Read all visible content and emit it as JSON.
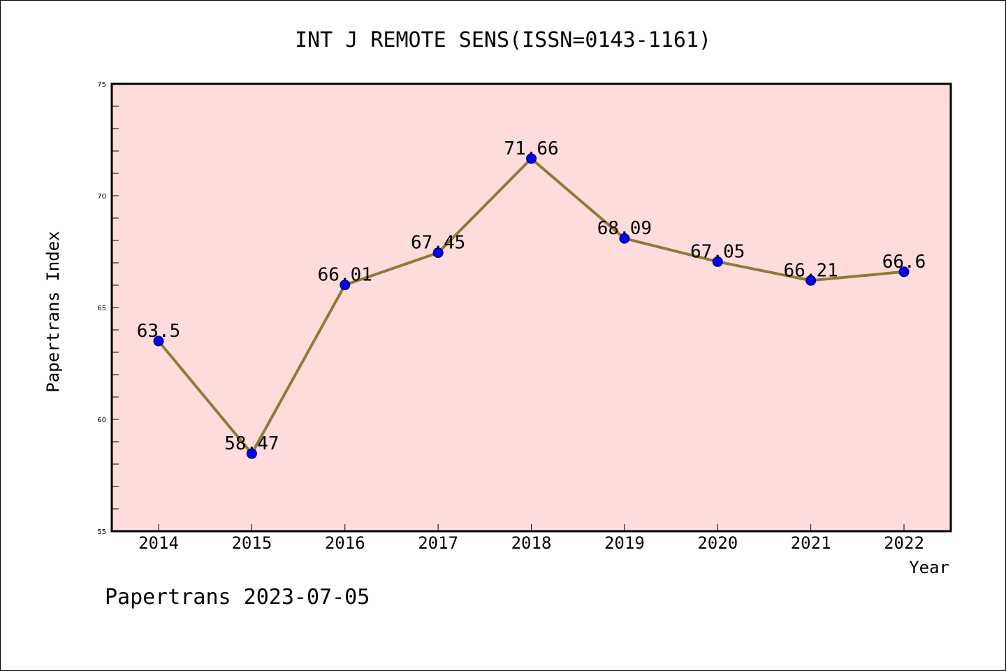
{
  "chart_data": {
    "type": "line",
    "title": "INT J REMOTE SENS(ISSN=0143-1161)",
    "xlabel": "Year",
    "ylabel": "Papertrans Index",
    "x": [
      "2014",
      "2015",
      "2016",
      "2017",
      "2018",
      "2019",
      "2020",
      "2021",
      "2022"
    ],
    "series": [
      {
        "values": [
          63.5,
          58.47,
          66.01,
          67.45,
          71.66,
          68.09,
          67.05,
          66.21,
          66.6
        ],
        "data_labels": [
          "63.5",
          "58.47",
          "66.01",
          "67.45",
          "71.66",
          "68.09",
          "67.05",
          "66.21",
          "66.6"
        ]
      }
    ],
    "ylim": [
      55,
      75
    ],
    "yticks": [
      "55",
      "60",
      "65",
      "70",
      "75"
    ],
    "grid": false,
    "line_color": "#8b7d3a",
    "marker_color": "#0000ff",
    "plot_background": "#ffdcdc"
  },
  "footer": {
    "text": "Papertrans 2023-07-05"
  }
}
